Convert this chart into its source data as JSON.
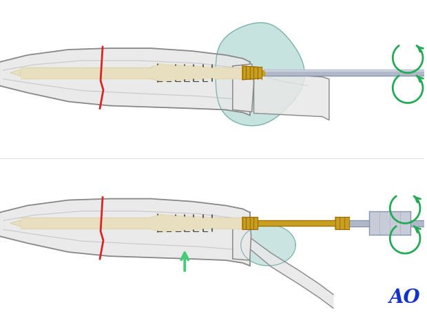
{
  "white_bg": "#ffffff",
  "bone_fill": "#e8e8e8",
  "bone_fill2": "#d8d8d8",
  "bone_outline": "#888888",
  "bone_inner": "#cccccc",
  "screw_ivory": "#e8dfc0",
  "screw_ivory2": "#ddd5ae",
  "gold_color": "#c8a020",
  "gold_dark": "#996600",
  "thread_color": "#444444",
  "fracture_color": "#dd2222",
  "driver_color": "#b0b8c8",
  "driver_dark": "#8090a8",
  "teal_fill": "#b8dcd8",
  "teal_outline": "#7ab0aa",
  "green_arrow": "#22aa55",
  "green_arrow_light": "#44cc77",
  "ao_blue": "#1133cc",
  "gray_mid": "#cccccc",
  "shadow_bone": "#d0d0d0"
}
